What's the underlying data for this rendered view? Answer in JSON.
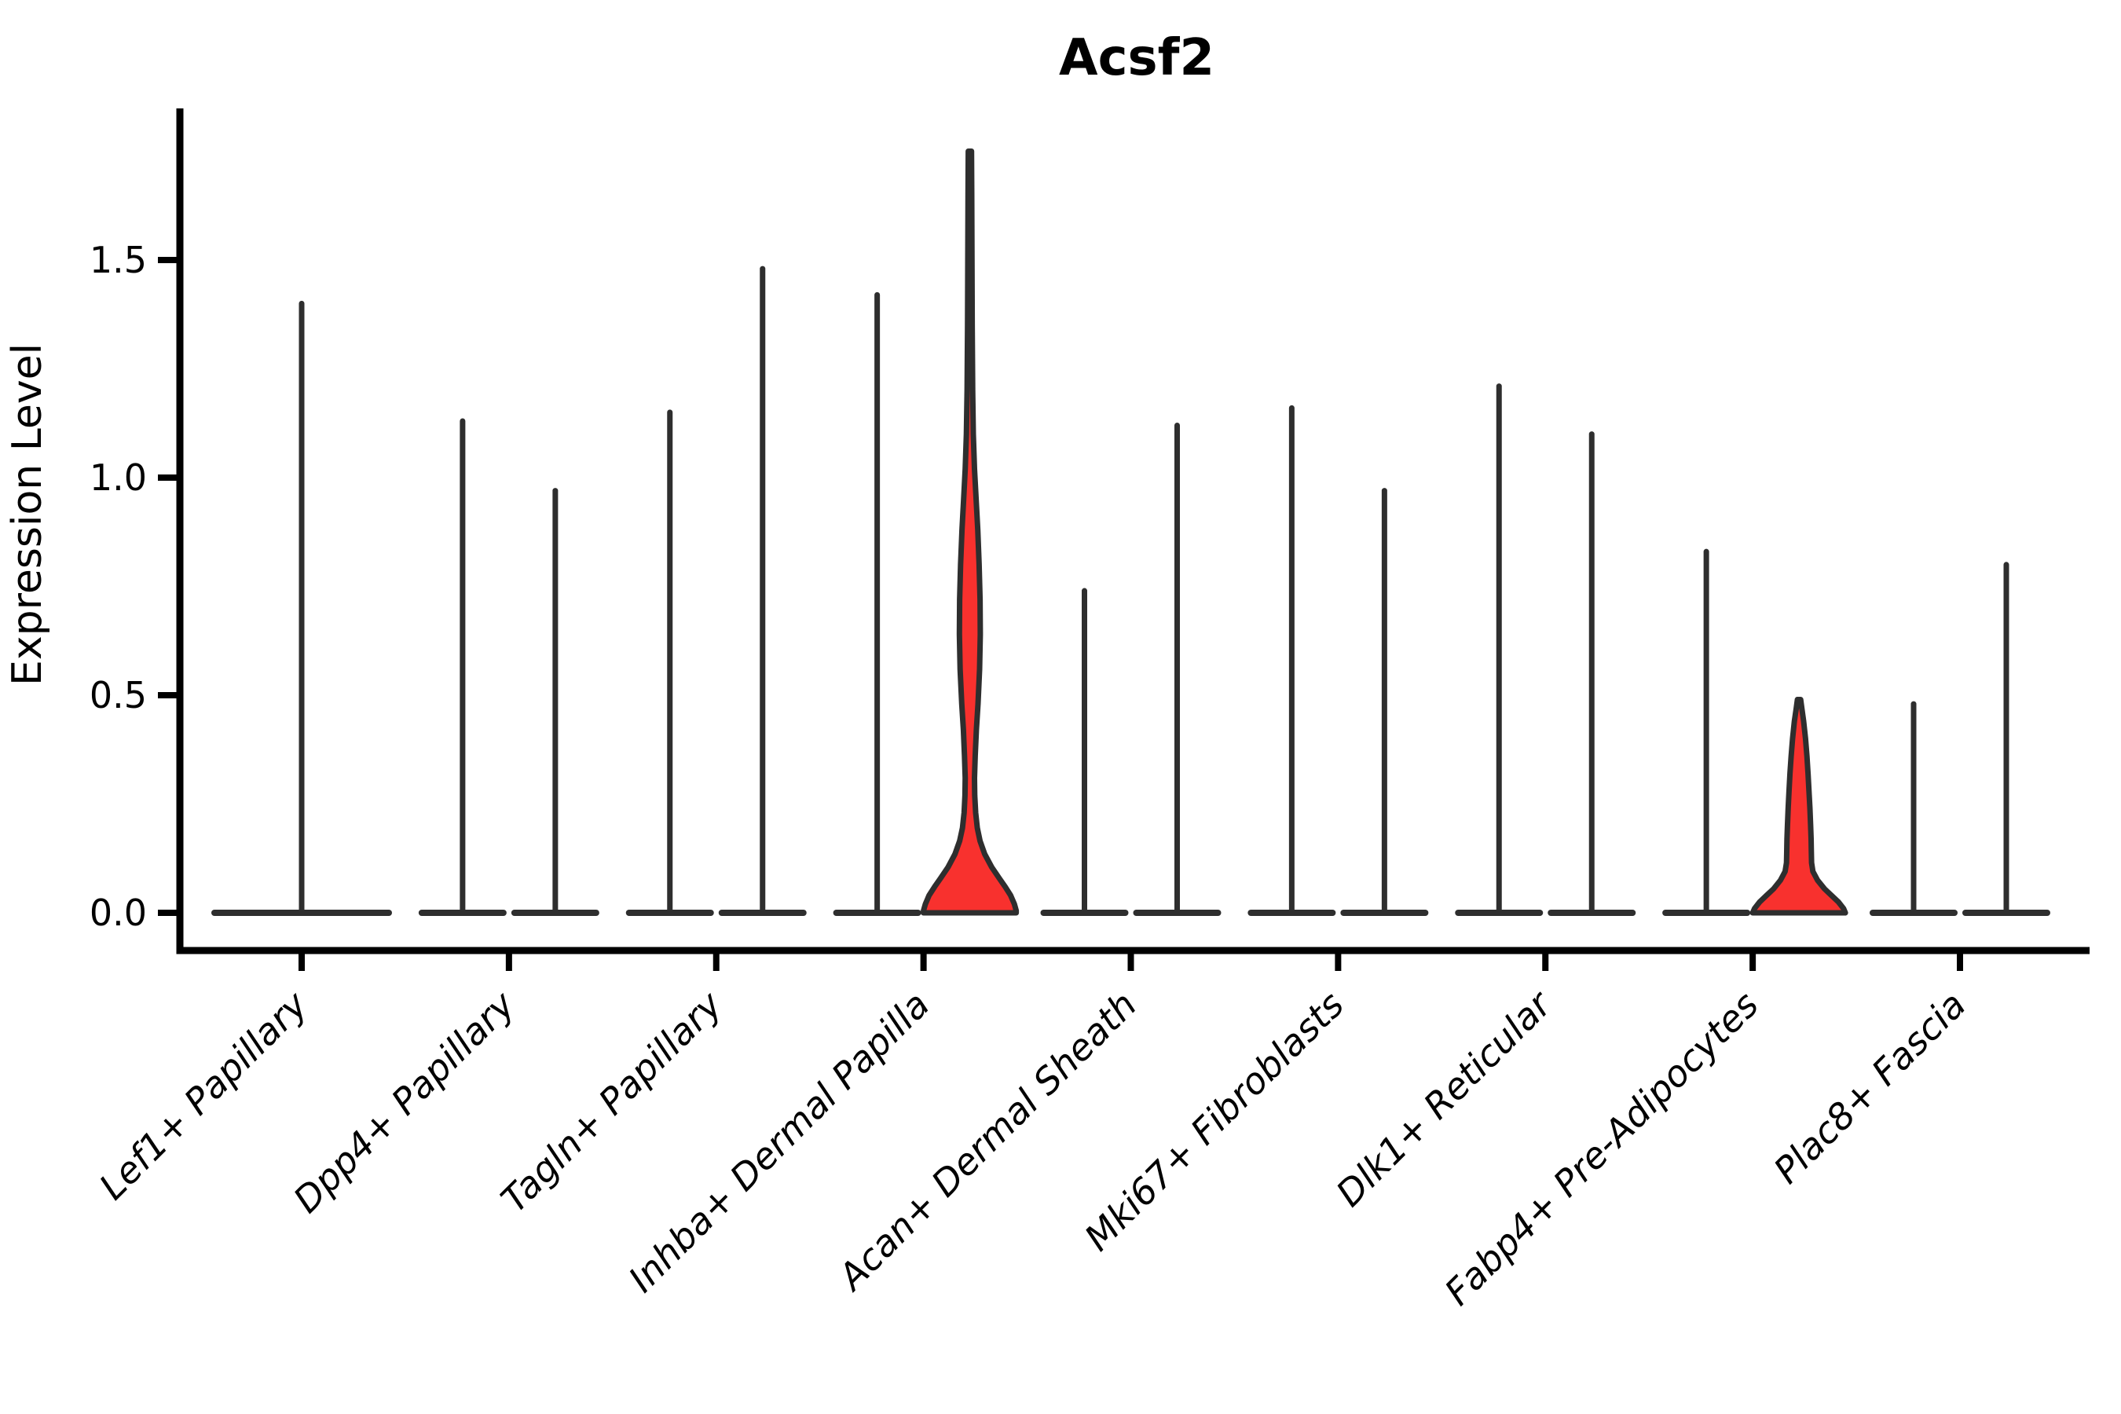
{
  "page": {
    "background": "#ffffff"
  },
  "chart_data": {
    "type": "violin",
    "title": "Acsf2",
    "ylabel": "Expression Level",
    "xlabel": "",
    "grid": false,
    "legend": null,
    "ylim": [
      -0.087,
      1.848
    ],
    "yticks": [
      {
        "value": 0.0,
        "label": "0.0"
      },
      {
        "value": 0.5,
        "label": "0.5"
      },
      {
        "value": 1.0,
        "label": "1.0"
      },
      {
        "value": 1.5,
        "label": "1.5"
      }
    ],
    "categories": [
      "Lef1+ Papillary",
      "Dpp4+ Papillary",
      "Tagln+ Papillary",
      "Inhba+ Dermal Papilla",
      "Acan+ Dermal Sheath",
      "Mki67+ Fibroblasts",
      "Dlk1+ Reticular",
      "Fabp4+ Pre-Adipocytes",
      "Plac8+ Fascia"
    ],
    "colors": {
      "violin_fill": "#f8312e",
      "violin_stroke": "#2e2e2e",
      "axis": "#000000"
    },
    "violins": [
      {
        "category_index": 0,
        "category": "Lef1+ Papillary",
        "slot": "full",
        "max_expression": 1.4,
        "filled_visible": false
      },
      {
        "category_index": 1,
        "category": "Dpp4+ Papillary",
        "slot": "left",
        "max_expression": 1.13,
        "filled_visible": false
      },
      {
        "category_index": 1,
        "category": "Dpp4+ Papillary",
        "slot": "right",
        "max_expression": 0.97,
        "filled_visible": false
      },
      {
        "category_index": 2,
        "category": "Tagln+ Papillary",
        "slot": "left",
        "max_expression": 1.15,
        "filled_visible": false
      },
      {
        "category_index": 2,
        "category": "Tagln+ Papillary",
        "slot": "right",
        "max_expression": 1.48,
        "filled_visible": false
      },
      {
        "category_index": 3,
        "category": "Inhba+ Dermal Papilla",
        "slot": "left",
        "max_expression": 1.42,
        "filled_visible": false
      },
      {
        "category_index": 3,
        "category": "Inhba+ Dermal Papilla",
        "slot": "right",
        "max_expression": 1.75,
        "filled_visible": true,
        "profile": [
          [
            1.75,
            0.035
          ],
          [
            1.65,
            0.04
          ],
          [
            1.5,
            0.045
          ],
          [
            1.35,
            0.05
          ],
          [
            1.2,
            0.06
          ],
          [
            1.1,
            0.075
          ],
          [
            1.02,
            0.1
          ],
          [
            0.95,
            0.135
          ],
          [
            0.88,
            0.17
          ],
          [
            0.8,
            0.2
          ],
          [
            0.72,
            0.22
          ],
          [
            0.64,
            0.225
          ],
          [
            0.56,
            0.21
          ],
          [
            0.48,
            0.175
          ],
          [
            0.42,
            0.14
          ],
          [
            0.36,
            0.115
          ],
          [
            0.31,
            0.1
          ],
          [
            0.27,
            0.105
          ],
          [
            0.23,
            0.125
          ],
          [
            0.195,
            0.16
          ],
          [
            0.165,
            0.22
          ],
          [
            0.135,
            0.32
          ],
          [
            0.105,
            0.47
          ],
          [
            0.08,
            0.63
          ],
          [
            0.06,
            0.76
          ],
          [
            0.04,
            0.88
          ],
          [
            0.02,
            0.96
          ],
          [
            0.005,
            1.0
          ],
          [
            0.0,
            1.0
          ]
        ]
      },
      {
        "category_index": 4,
        "category": "Acan+ Dermal Sheath",
        "slot": "left",
        "max_expression": 0.74,
        "filled_visible": false
      },
      {
        "category_index": 4,
        "category": "Acan+ Dermal Sheath",
        "slot": "right",
        "max_expression": 1.12,
        "filled_visible": false
      },
      {
        "category_index": 5,
        "category": "Mki67+ Fibroblasts",
        "slot": "left",
        "max_expression": 1.16,
        "filled_visible": false
      },
      {
        "category_index": 5,
        "category": "Mki67+ Fibroblasts",
        "slot": "right",
        "max_expression": 0.97,
        "filled_visible": false
      },
      {
        "category_index": 6,
        "category": "Dlk1+ Reticular",
        "slot": "left",
        "max_expression": 1.21,
        "filled_visible": false
      },
      {
        "category_index": 6,
        "category": "Dlk1+ Reticular",
        "slot": "right",
        "max_expression": 1.1,
        "filled_visible": false
      },
      {
        "category_index": 7,
        "category": "Fabp4+ Pre-Adipocytes",
        "slot": "left",
        "max_expression": 0.83,
        "filled_visible": false
      },
      {
        "category_index": 7,
        "category": "Fabp4+ Pre-Adipocytes",
        "slot": "right",
        "max_expression": 0.49,
        "filled_visible": true,
        "profile": [
          [
            0.49,
            0.035
          ],
          [
            0.47,
            0.06
          ],
          [
            0.44,
            0.1
          ],
          [
            0.4,
            0.14
          ],
          [
            0.36,
            0.17
          ],
          [
            0.32,
            0.195
          ],
          [
            0.28,
            0.215
          ],
          [
            0.24,
            0.235
          ],
          [
            0.2,
            0.25
          ],
          [
            0.17,
            0.26
          ],
          [
            0.14,
            0.265
          ],
          [
            0.115,
            0.27
          ],
          [
            0.095,
            0.3
          ],
          [
            0.075,
            0.4
          ],
          [
            0.055,
            0.55
          ],
          [
            0.04,
            0.7
          ],
          [
            0.025,
            0.85
          ],
          [
            0.01,
            0.96
          ],
          [
            0.0,
            1.0
          ]
        ]
      },
      {
        "category_index": 8,
        "category": "Plac8+ Fascia",
        "slot": "left",
        "max_expression": 0.48,
        "filled_visible": false
      },
      {
        "category_index": 8,
        "category": "Plac8+ Fascia",
        "slot": "right",
        "max_expression": 0.8,
        "filled_visible": false
      }
    ]
  }
}
